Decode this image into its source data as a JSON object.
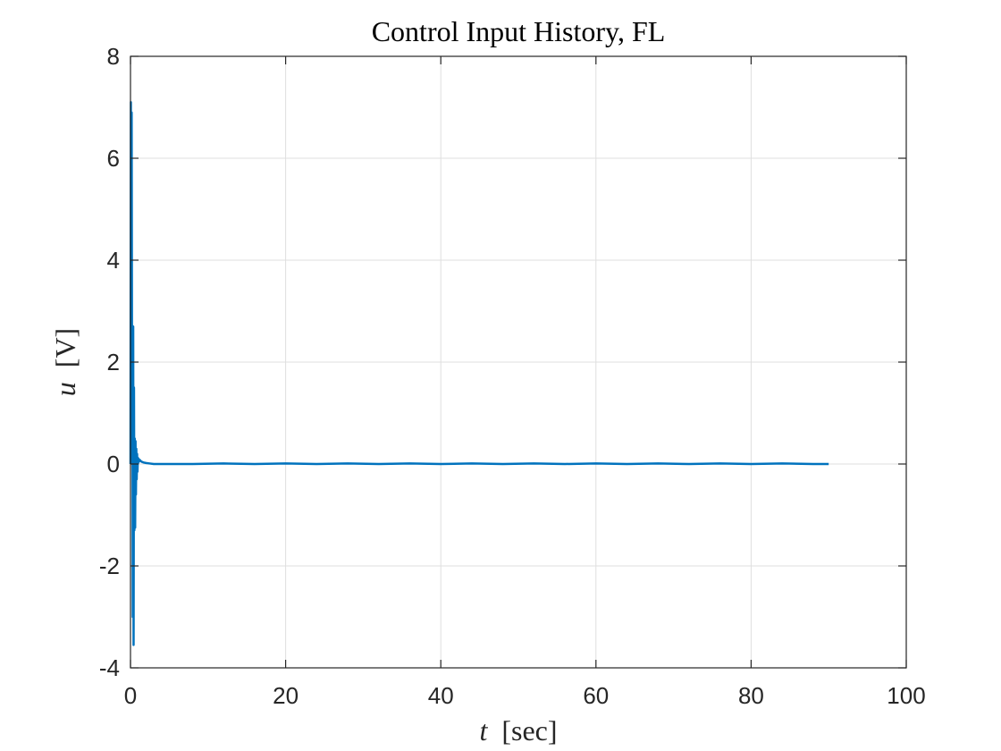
{
  "chart_data": {
    "type": "line",
    "title": "Control Input History, FL",
    "xlabel_var": "t",
    "xlabel_unit": "[sec]",
    "ylabel_var": "u",
    "ylabel_unit": "[V]",
    "xlim": [
      0,
      100
    ],
    "ylim": [
      -4,
      8
    ],
    "xticks": [
      0,
      20,
      40,
      60,
      80,
      100
    ],
    "yticks": [
      -4,
      -2,
      0,
      2,
      4,
      6,
      8
    ],
    "grid": true,
    "line_color": "#0072BD",
    "series": [
      {
        "x": [
          0,
          0.05,
          0.1,
          0.15,
          0.2,
          0.25,
          0.3,
          0.35,
          0.4,
          0.45,
          0.5,
          0.55,
          0.6,
          0.65,
          0.7,
          0.75,
          0.8,
          0.85,
          0.9,
          0.95,
          1.0,
          1.05,
          1.1,
          1.2,
          1.3,
          1.4,
          1.5,
          1.7,
          2.0,
          2.5,
          3,
          5,
          8,
          12,
          16,
          20,
          24,
          28,
          32,
          36,
          40,
          44,
          48,
          52,
          56,
          60,
          64,
          68,
          72,
          76,
          80,
          84,
          88,
          90
        ],
        "values": [
          0,
          7.1,
          1.5,
          6.9,
          1.6,
          2.7,
          -3.0,
          2.7,
          -3.55,
          1.5,
          -1.3,
          0.5,
          -1.25,
          0.45,
          -0.6,
          0.3,
          -0.3,
          0.2,
          -0.15,
          0.12,
          0.02,
          0.1,
          0.05,
          0.08,
          0.06,
          0.05,
          0.04,
          0.03,
          0.02,
          0.01,
          0.0,
          0.0,
          0.0,
          0.01,
          0.0,
          0.01,
          0.0,
          0.01,
          0.0,
          0.01,
          0.0,
          0.01,
          0.0,
          0.01,
          0.0,
          0.01,
          0.0,
          0.01,
          0.0,
          0.01,
          0.0,
          0.01,
          0.0,
          0.0
        ]
      }
    ]
  }
}
